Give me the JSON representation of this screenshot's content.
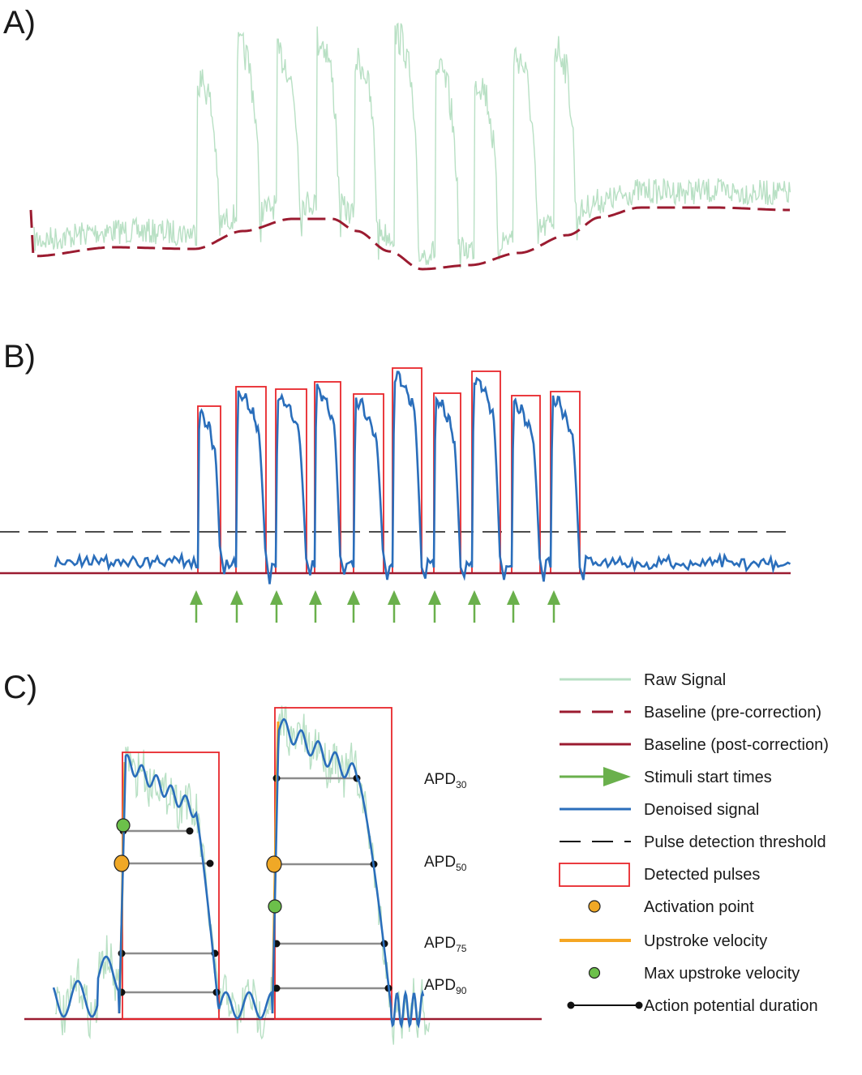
{
  "panels": {
    "a": "A)",
    "b": "B)",
    "c": "C)"
  },
  "apd_labels": [
    {
      "base": "APD",
      "sub": "30"
    },
    {
      "base": "APD",
      "sub": "50"
    },
    {
      "base": "APD",
      "sub": "75"
    },
    {
      "base": "APD",
      "sub": "90"
    }
  ],
  "legend": [
    {
      "key": "raw",
      "label": "Raw Signal"
    },
    {
      "key": "baseline_pre",
      "label": "Baseline (pre-correction)"
    },
    {
      "key": "baseline_post",
      "label": "Baseline (post-correction)"
    },
    {
      "key": "stimuli",
      "label": "Stimuli start times"
    },
    {
      "key": "denoised",
      "label": "Denoised signal"
    },
    {
      "key": "threshold",
      "label": "Pulse detection threshold"
    },
    {
      "key": "pulses",
      "label": "Detected pulses"
    },
    {
      "key": "activation",
      "label": "Activation point"
    },
    {
      "key": "upstroke",
      "label": "Upstroke velocity"
    },
    {
      "key": "max_upstroke",
      "label": "Max upstroke velocity"
    },
    {
      "key": "apd",
      "label": "Action potential duration"
    }
  ],
  "colors": {
    "raw": "#b8e0c4",
    "baseline": "#9b1b30",
    "stimuli": "#6ab04c",
    "denoised": "#2a6ebb",
    "threshold": "#111111",
    "pulses": "#e8262b",
    "activation": "#f0a826",
    "upstroke": "#f5a623",
    "max_upstroke": "#6cc04a",
    "apd_line": "#8c8c8c",
    "apd_dot": "#111111"
  }
}
